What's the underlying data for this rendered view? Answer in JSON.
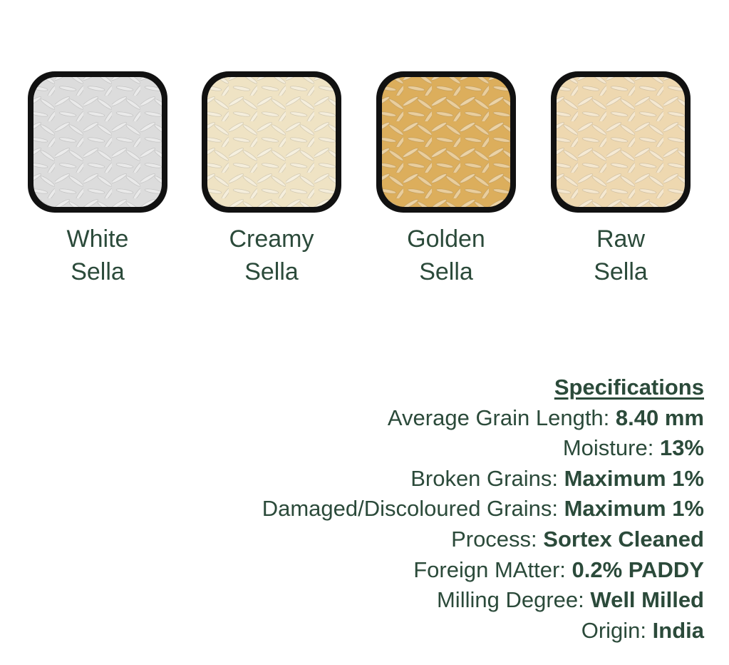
{
  "products": [
    {
      "lines": [
        "White",
        "Sella"
      ]
    },
    {
      "lines": [
        "Creamy",
        "Sella"
      ]
    },
    {
      "lines": [
        "Golden",
        "Sella"
      ]
    },
    {
      "lines": [
        "Raw",
        "Sella"
      ]
    }
  ],
  "specifications": {
    "title": "Specifications",
    "items": [
      {
        "label": "Average Grain Length:",
        "value": "8.40 mm"
      },
      {
        "label": "Moisture:",
        "value": "13%"
      },
      {
        "label": "Broken Grains:",
        "value": "Maximum 1%"
      },
      {
        "label": "Damaged/Discoloured Grains:",
        "value": "Maximum 1%"
      },
      {
        "label": "Process:",
        "value": "Sortex Cleaned"
      },
      {
        "label": "Foreign MAtter:",
        "value": "0.2% PADDY"
      },
      {
        "label": "Milling Degree:",
        "value": "Well Milled"
      },
      {
        "label": "Origin:",
        "value": "India"
      }
    ]
  }
}
